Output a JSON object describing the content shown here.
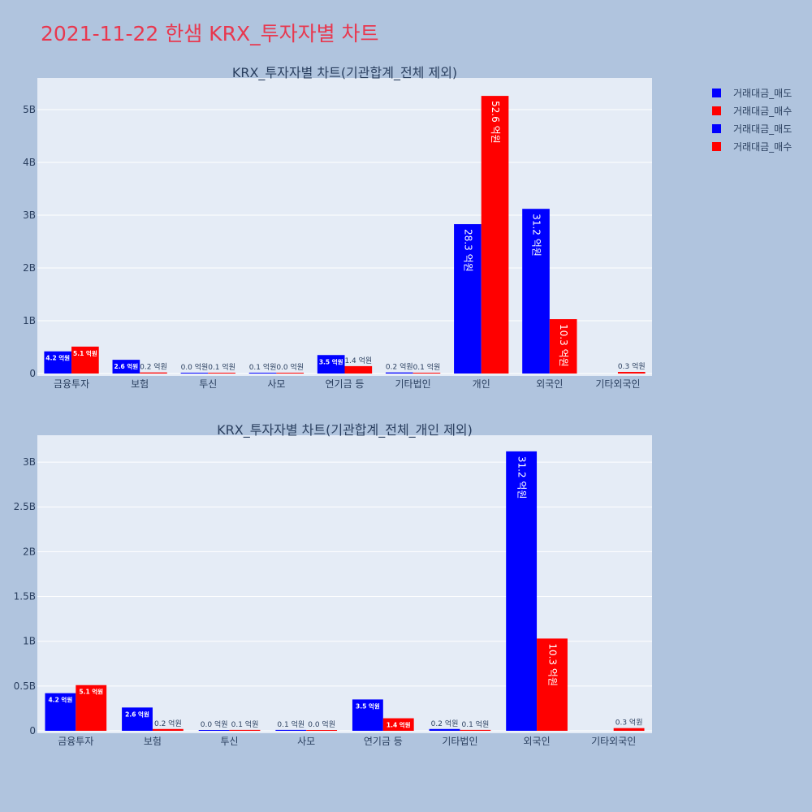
{
  "page_title": "2021-11-22 한샘 KRX_투자자별 차트",
  "legend": [
    {
      "label": "거래대금_매도",
      "color": "#0000ff"
    },
    {
      "label": "거래대금_매수",
      "color": "#ff0000"
    },
    {
      "label": "거래대금_매도",
      "color": "#0000ff"
    },
    {
      "label": "거래대금_매수",
      "color": "#ff0000"
    }
  ],
  "colors": {
    "sell": "#0000ff",
    "buy": "#ff0000",
    "plot_bg": "#e5ecf6",
    "page_bg": "#b0c4de",
    "title": "#e8384f"
  },
  "chart_data": [
    {
      "type": "bar",
      "title": "KRX_투자자별 차트(기관합계_전체 제외)",
      "categories": [
        "금융투자",
        "보험",
        "투신",
        "사모",
        "연기금 등",
        "기타법인",
        "개인",
        "외국인",
        "기타외국인"
      ],
      "ylim": [
        0,
        5.6
      ],
      "yticks": [
        0,
        1,
        2,
        3,
        4,
        5
      ],
      "ytick_labels": [
        "0",
        "1B",
        "2B",
        "3B",
        "4B",
        "5B"
      ],
      "series": [
        {
          "name": "거래대금_매도",
          "color": "#0000ff",
          "values": [
            0.42,
            0.26,
            0.0,
            0.01,
            0.35,
            0.02,
            2.83,
            3.12,
            null
          ],
          "labels": [
            "4.2 억원",
            "2.6 억원",
            "0.0 억원",
            "0.1 억원",
            "3.5 억원",
            "0.2 억원",
            "28.3 억원",
            "31.2 억원",
            null
          ]
        },
        {
          "name": "거래대금_매수",
          "color": "#ff0000",
          "values": [
            0.51,
            0.02,
            0.01,
            0.0,
            0.14,
            0.01,
            5.26,
            1.03,
            0.03
          ],
          "labels": [
            "5.1 억원",
            "0.2 억원",
            "0.1 억원",
            "0.0 억원",
            "1.4 억원",
            "0.1 억원",
            "52.6 억원",
            "10.3 억원",
            "0.3 억원"
          ]
        }
      ]
    },
    {
      "type": "bar",
      "title": "KRX_투자자별 차트(기관합계_전체_개인 제외)",
      "categories": [
        "금융투자",
        "보험",
        "투신",
        "사모",
        "연기금 등",
        "기타법인",
        "외국인",
        "기타외국인"
      ],
      "ylim": [
        0,
        3.3
      ],
      "yticks": [
        0,
        0.5,
        1,
        1.5,
        2,
        2.5,
        3
      ],
      "ytick_labels": [
        "0",
        "0.5B",
        "1B",
        "1.5B",
        "2B",
        "2.5B",
        "3B"
      ],
      "series": [
        {
          "name": "거래대금_매도",
          "color": "#0000ff",
          "values": [
            0.42,
            0.26,
            0.0,
            0.01,
            0.35,
            0.02,
            3.12,
            null
          ],
          "labels": [
            "4.2 억원",
            "2.6 억원",
            "0.0 억원",
            "0.1 억원",
            "3.5 억원",
            "0.2 억원",
            "31.2 억원",
            null
          ]
        },
        {
          "name": "거래대금_매수",
          "color": "#ff0000",
          "values": [
            0.51,
            0.02,
            0.01,
            0.0,
            0.14,
            0.01,
            1.03,
            0.03
          ],
          "labels": [
            "5.1 억원",
            "0.2 억원",
            "0.1 억원",
            "0.0 억원",
            "1.4 억원",
            "0.1 억원",
            "10.3 억원",
            "0.3 억원"
          ]
        }
      ]
    }
  ]
}
